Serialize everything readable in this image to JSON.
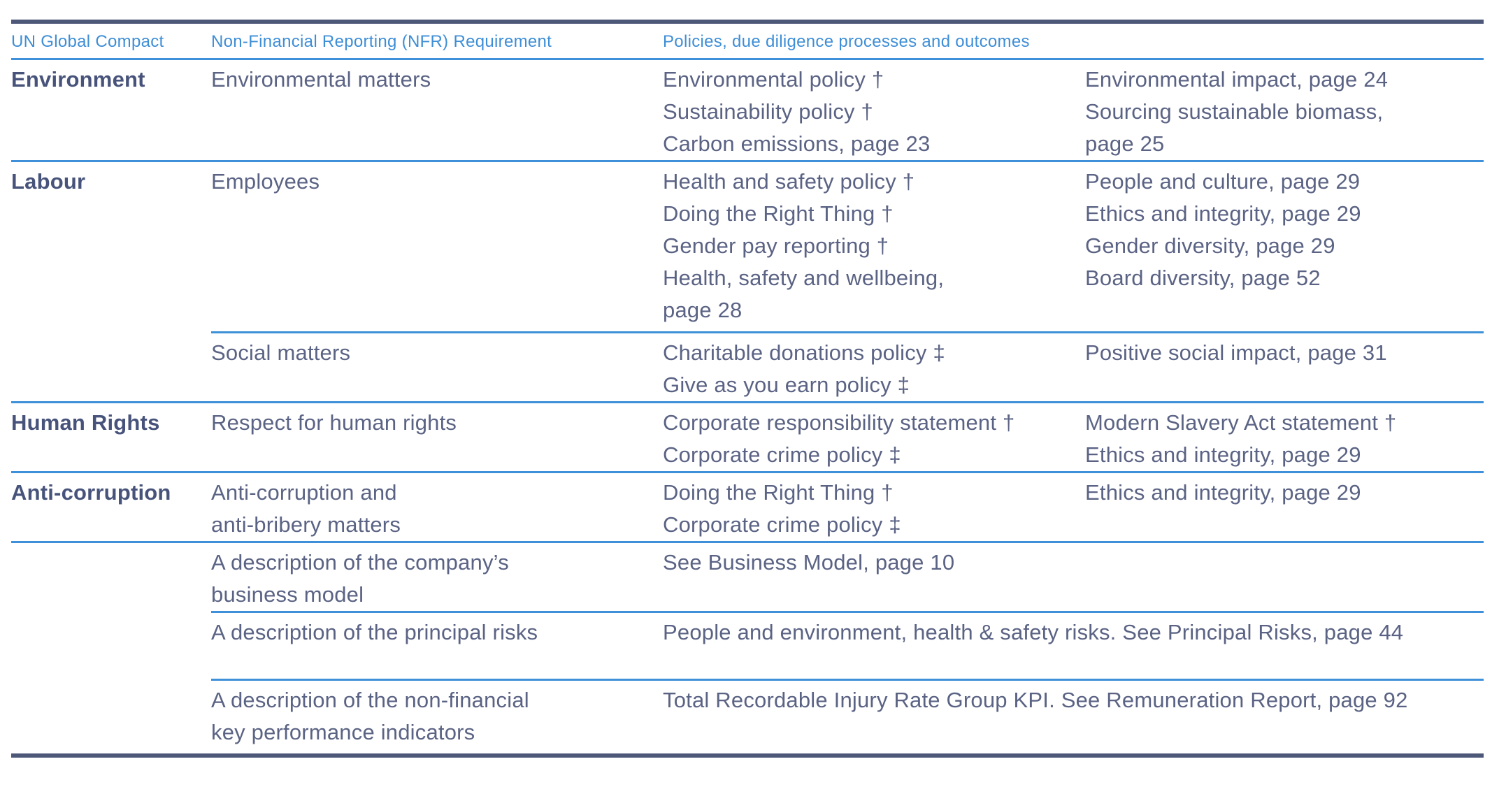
{
  "colors": {
    "accent-blue": "#3e8ed6",
    "rule-blue": "#3e90d8",
    "border-navy": "#4d5878",
    "label-navy": "#47537a",
    "body-slate": "#5b6384",
    "bg": "#ffffff"
  },
  "table": {
    "headers": {
      "un_global_compact": "UN Global Compact",
      "nfr_requirement": "Non-Financial Reporting (NFR) Requirement",
      "policies_outcomes": "Policies, due diligence processes and outcomes"
    },
    "rows": [
      {
        "category": "Environment",
        "requirement": [
          "Environmental matters"
        ],
        "policies": [
          "Environmental policy †",
          "Sustainability policy †",
          "Carbon emissions, page 23"
        ],
        "outcomes": [
          "Environmental impact, page 24",
          "Sourcing sustainable biomass,",
          "page 25"
        ]
      },
      {
        "category": "Labour",
        "requirement": [
          "Employees"
        ],
        "policies": [
          "Health and safety policy †",
          "Doing the Right Thing †",
          "Gender pay reporting †",
          "Health, safety and wellbeing,",
          "page 28"
        ],
        "outcomes": [
          "People and culture, page 29",
          "Ethics and integrity, page 29",
          "Gender diversity, page 29",
          "Board diversity, page 52"
        ]
      },
      {
        "category": "",
        "requirement": [
          "Social matters"
        ],
        "policies": [
          "Charitable donations policy ‡",
          "Give as you earn policy ‡"
        ],
        "outcomes": [
          "Positive social impact, page 31"
        ]
      },
      {
        "category": "Human Rights",
        "requirement": [
          "Respect for human rights"
        ],
        "policies": [
          "Corporate responsibility statement †",
          "Corporate crime policy ‡"
        ],
        "outcomes": [
          "Modern Slavery Act statement †",
          "Ethics and integrity, page 29"
        ]
      },
      {
        "category": "Anti-corruption",
        "requirement": [
          "Anti-corruption and",
          "anti-bribery matters"
        ],
        "policies": [
          "Doing the Right Thing †",
          "Corporate crime policy ‡"
        ],
        "outcomes": [
          "Ethics and integrity, page 29"
        ]
      },
      {
        "category": "",
        "requirement": [
          "A description of the company’s",
          "business model"
        ],
        "policies_span": [
          "See Business Model, page 10"
        ]
      },
      {
        "category": "",
        "requirement": [
          "A description of the principal risks"
        ],
        "policies_span": [
          "People and environment, health & safety risks. See Principal Risks, page 44"
        ]
      },
      {
        "category": "",
        "requirement": [
          "A description of the non-financial",
          "key performance indicators"
        ],
        "policies_span": [
          "Total Recordable Injury Rate Group KPI. See Remuneration Report, page 92"
        ]
      }
    ]
  }
}
